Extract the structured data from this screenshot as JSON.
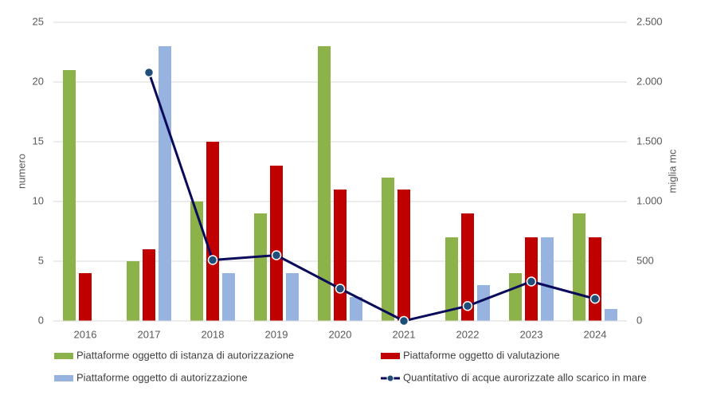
{
  "chart_data": {
    "type": "bar",
    "categories": [
      "2016",
      "2017",
      "2018",
      "2019",
      "2020",
      "2021",
      "2022",
      "2023",
      "2024"
    ],
    "ylabel": "numero",
    "y2label": "miglia mc",
    "ylim": [
      0,
      25
    ],
    "yticks": [
      0,
      5,
      10,
      15,
      20,
      25
    ],
    "y2lim": [
      0,
      2500
    ],
    "y2ticks": [
      0,
      500,
      {
        "value": 1000,
        "label": "1.000"
      },
      {
        "value": 1500,
        "label": "1.500"
      },
      {
        "value": 2000,
        "label": "2.000"
      },
      {
        "value": 2500,
        "label": "2.500"
      }
    ],
    "grid": true,
    "series": [
      {
        "name": "Piattaforme oggetto di istanza di autorizzazione",
        "color": "#8db24a",
        "values": [
          21,
          5,
          10,
          9,
          23,
          12,
          7,
          4,
          9
        ]
      },
      {
        "name": "Piattaforme oggetto di valutazione",
        "color": "#c00000",
        "values": [
          4,
          6,
          15,
          13,
          11,
          11,
          9,
          7,
          7
        ]
      },
      {
        "name": "Piattaforme oggetto di autorizzazione",
        "color": "#97b3e0",
        "values": [
          0,
          23,
          4,
          4,
          2,
          0,
          3,
          7,
          1
        ]
      },
      {
        "name": "Quantitativo di acque aurorizzate allo scarico in mare",
        "color": "#0a0a5a",
        "type": "line",
        "axis": "y2",
        "values": [
          null,
          2080,
          510,
          550,
          270,
          0,
          125,
          330,
          185
        ]
      }
    ]
  }
}
